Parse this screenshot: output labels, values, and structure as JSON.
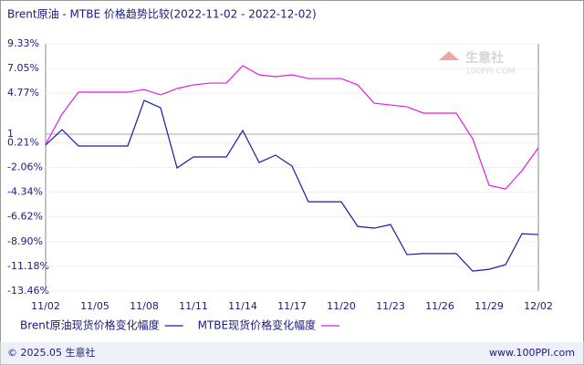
{
  "chart_data": {
    "type": "line",
    "title": "Brent原油 - MTBE 价格趋势比较(2022-11-02 - 2022-12-02)",
    "watermark": {
      "name": "生意社",
      "site": "100PPI.COM"
    },
    "categories": [
      "11/02",
      null,
      null,
      "11/05",
      null,
      null,
      "11/08",
      null,
      null,
      "11/11",
      null,
      null,
      "11/14",
      null,
      null,
      "11/17",
      null,
      null,
      "11/20",
      null,
      null,
      "11/23",
      null,
      null,
      "11/26",
      null,
      null,
      "11/29",
      null,
      null,
      "12/02"
    ],
    "series": [
      {
        "name": "Brent原油现货价格变化幅度",
        "color": "#1a1aa6",
        "values": [
          0.0,
          1.42,
          -0.09,
          -0.09,
          -0.09,
          -0.09,
          4.11,
          3.44,
          -2.11,
          -1.1,
          -1.1,
          -1.1,
          1.34,
          -1.61,
          -0.93,
          -1.94,
          -5.23,
          -5.23,
          -5.23,
          -7.5,
          -7.66,
          -7.33,
          -10.1,
          -10.0,
          -10.0,
          -10.0,
          -11.62,
          -11.45,
          -11.03,
          -8.17,
          -8.25
        ]
      },
      {
        "name": "MTBE现货价格变化幅度",
        "color": "#e01ee0",
        "values": [
          0.08,
          2.85,
          4.87,
          4.87,
          4.87,
          4.87,
          5.12,
          4.62,
          5.21,
          5.54,
          5.71,
          5.71,
          7.31,
          6.47,
          6.3,
          6.47,
          6.13,
          6.13,
          6.13,
          5.54,
          3.86,
          3.69,
          3.52,
          2.94,
          2.94,
          2.94,
          0.58,
          -3.71,
          -4.05,
          -2.36,
          -0.26
        ]
      }
    ],
    "ylim": [
      -13.46,
      9.33
    ],
    "yticks": [
      {
        "value": 9.33,
        "label": "9.33%"
      },
      {
        "value": 7.05,
        "label": "7.05%"
      },
      {
        "value": 4.77,
        "label": "4.77%"
      },
      1,
      {
        "value": 0.21,
        "label": "0.21%"
      },
      {
        "value": -2.06,
        "label": "-2.06%"
      },
      {
        "value": -4.34,
        "label": "-4.34%"
      },
      {
        "value": -6.62,
        "label": "-6.62%"
      },
      {
        "value": -8.9,
        "label": "-8.90%"
      },
      {
        "value": -11.18,
        "label": "-11.18%"
      },
      {
        "value": -13.46,
        "label": "-13.46%"
      }
    ],
    "grid": true,
    "footer": {
      "left": "© 2025.05 生意社",
      "right": "www.100PPI.com"
    }
  }
}
